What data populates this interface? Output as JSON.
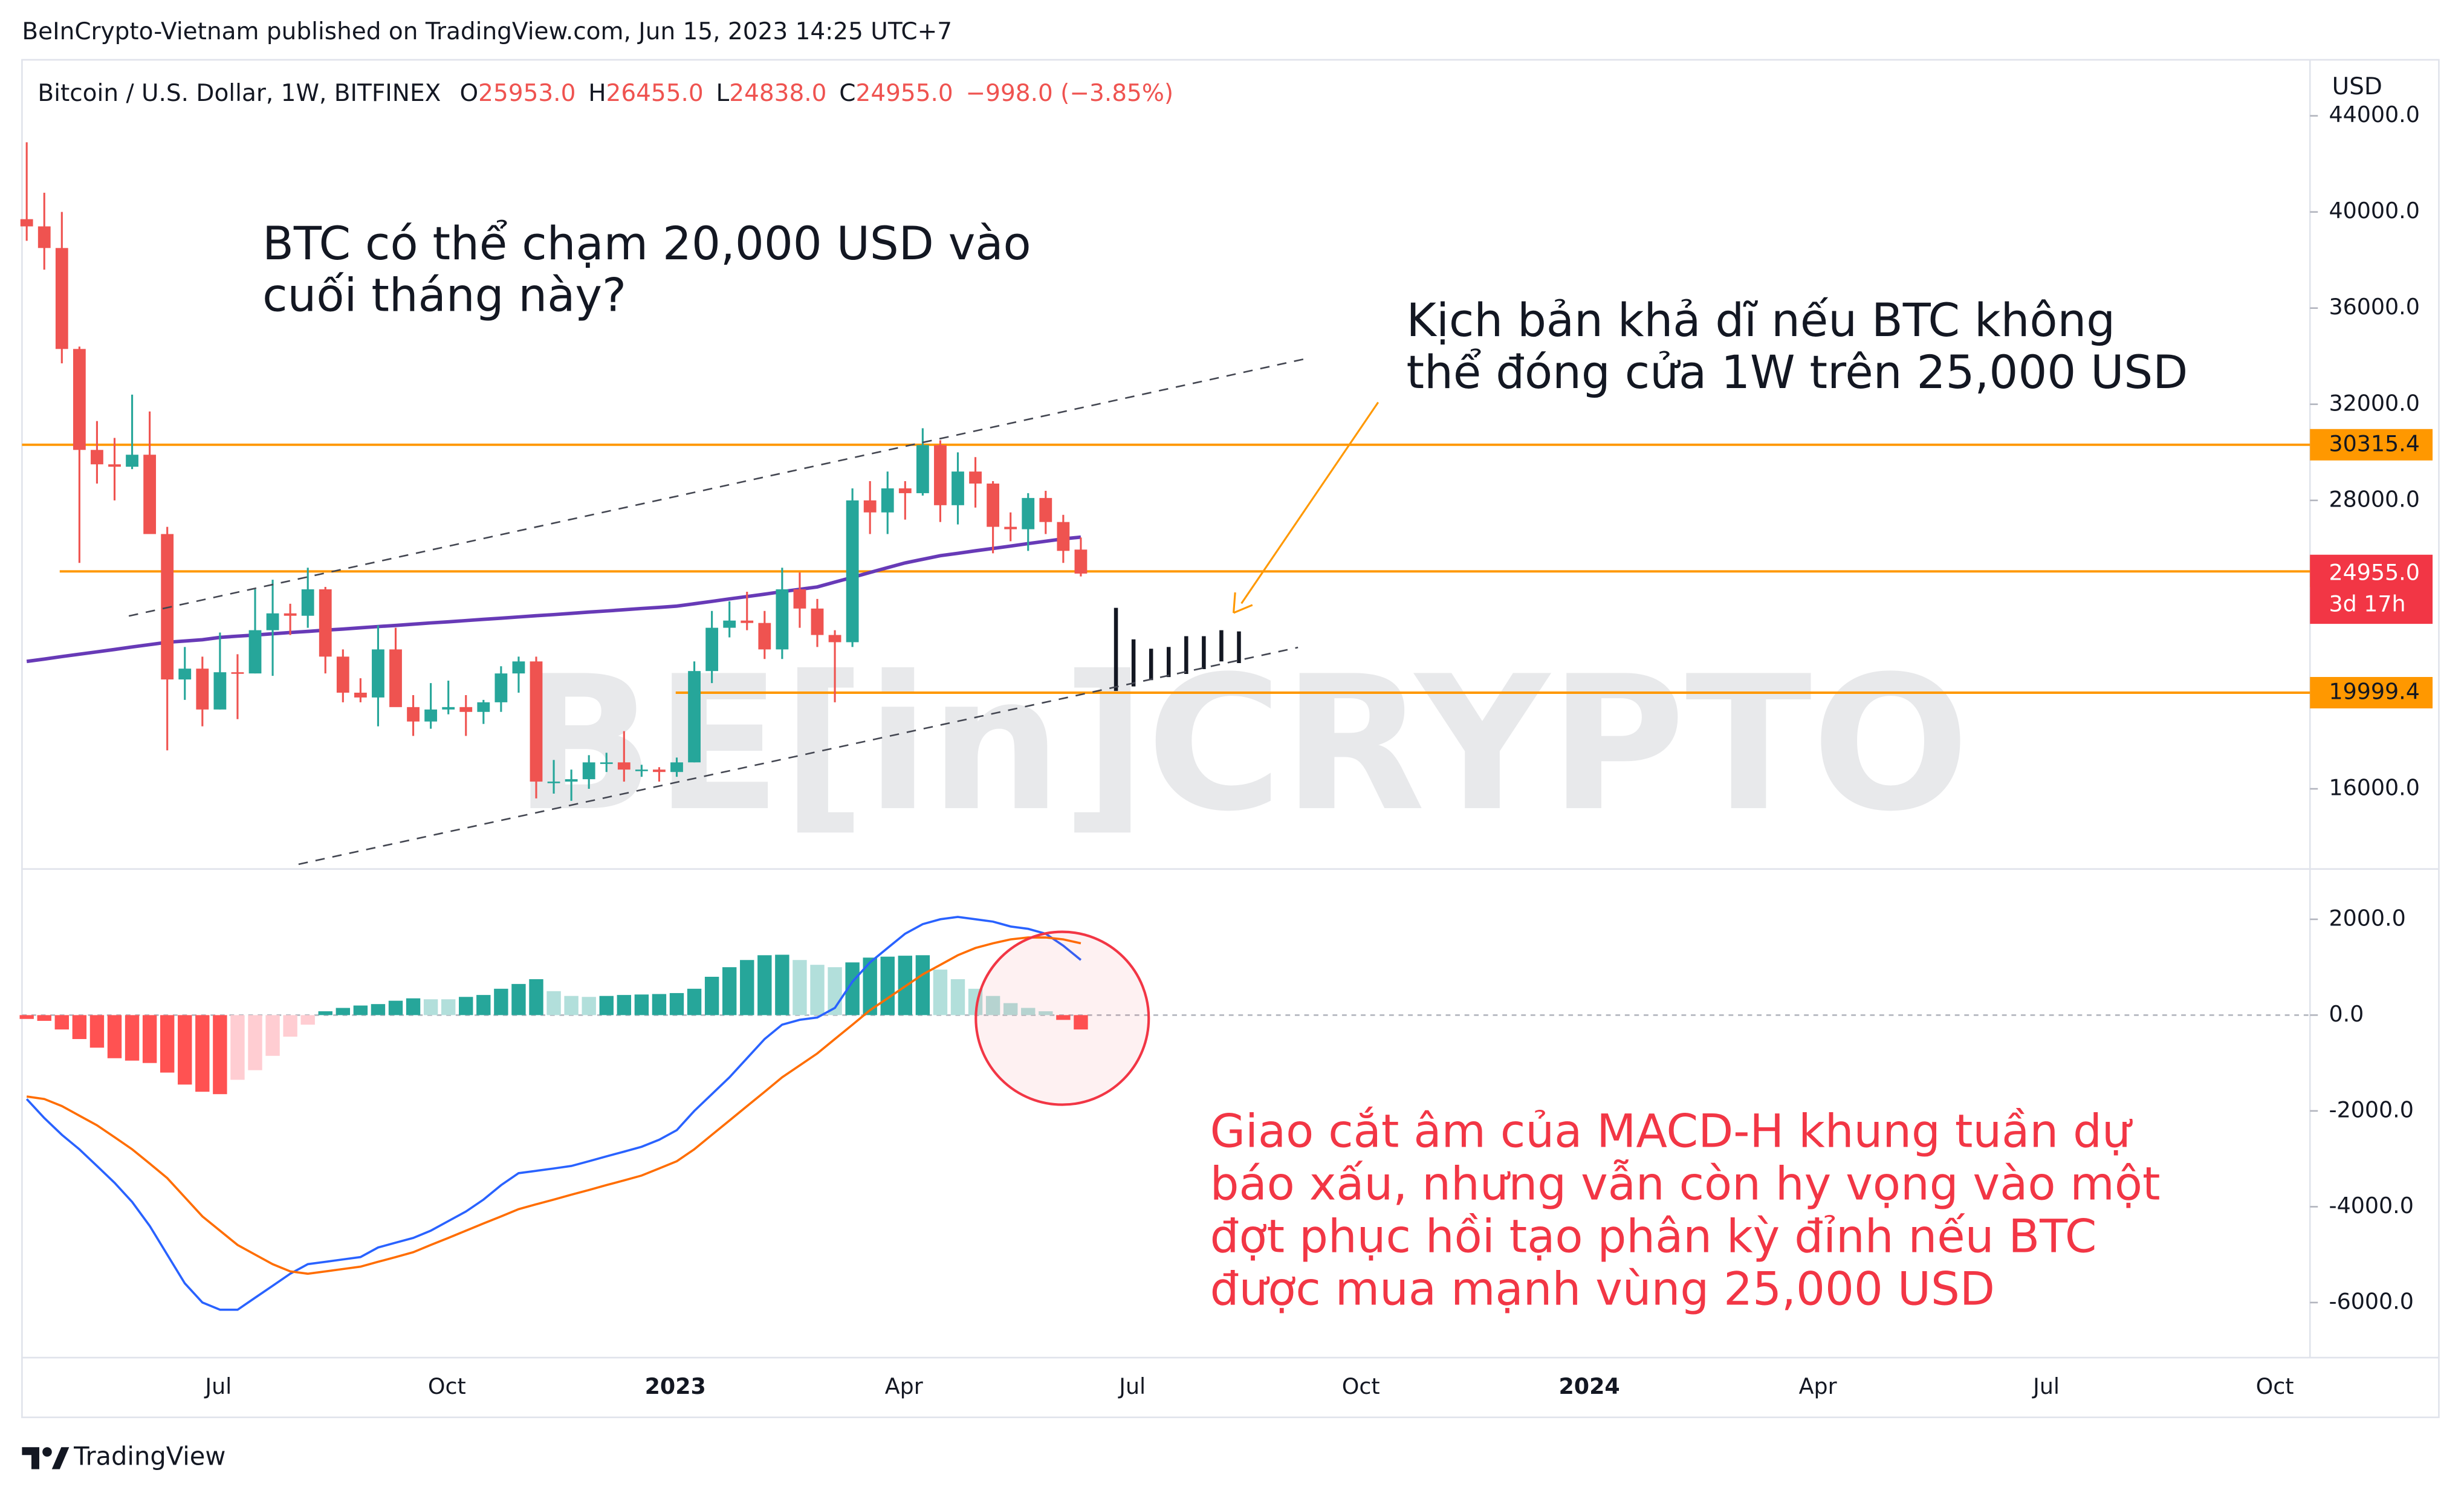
{
  "published": "BeInCrypto-Vietnam published on TradingView.com, Jun 15, 2023 14:25 UTC+7",
  "footer": "TradingView",
  "watermark": "BE[in]CRYPTO",
  "annotations": {
    "question": [
      "BTC có thể chạm 20,000 USD vào",
      "cuối tháng này?"
    ],
    "scenario": [
      "Kịch bản khả dĩ nếu BTC không",
      "thể đóng cửa 1W trên 25,000 USD"
    ],
    "macd_note": [
      "Giao cắt âm của MACD-H khung tuần dự",
      "báo xấu, nhưng vẫn còn hy vọng vào một",
      "đợt phục hồi tạo phân kỳ đỉnh nếu BTC",
      "được mua mạnh vùng 25,000 USD"
    ]
  },
  "time_axis": {
    "labels": [
      "Jul",
      "Oct",
      "2023",
      "Apr",
      "Jul",
      "Oct",
      "2024",
      "Apr",
      "Jul",
      "Oct"
    ],
    "bold": [
      "2023",
      "2024"
    ]
  },
  "chart_data": [
    {
      "type": "candlestick",
      "title": "Bitcoin / U.S. Dollar, 1W, BITFINEX",
      "ohlc_legend": [
        [
          "O",
          "25953.0"
        ],
        [
          "H",
          "26455.0"
        ],
        [
          "L",
          "24838.0"
        ],
        [
          "C",
          "24955.0"
        ]
      ],
      "change": "−998.0 (−3.85%)",
      "axis_unit": "USD",
      "up_color": "#26a69a",
      "down_color": "#ef5350",
      "ylim": [
        12730,
        46200
      ],
      "yticks": [
        {
          "value": 16000,
          "label": "16000.0"
        },
        {
          "value": 28000,
          "label": "28000.0"
        },
        {
          "value": 32000,
          "label": "32000.0"
        },
        {
          "value": 36000,
          "label": "36000.0"
        },
        {
          "value": 40000,
          "label": "40000.0"
        },
        {
          "value": 44000,
          "label": "44000.0"
        }
      ],
      "ohlc": [
        [
          39700,
          42900,
          38800,
          39400
        ],
        [
          39400,
          40800,
          37600,
          38500
        ],
        [
          38500,
          40000,
          33700,
          34300
        ],
        [
          34300,
          34400,
          25400,
          30100
        ],
        [
          30100,
          31300,
          28700,
          29500
        ],
        [
          29500,
          30600,
          28000,
          29400
        ],
        [
          29400,
          32400,
          29300,
          29900
        ],
        [
          29900,
          31700,
          26700,
          26600
        ],
        [
          26600,
          26900,
          17600,
          20550
        ],
        [
          20550,
          21900,
          19700,
          21000
        ],
        [
          21000,
          21500,
          18600,
          19300
        ],
        [
          19300,
          22500,
          19300,
          20850
        ],
        [
          20850,
          21600,
          18900,
          20800
        ],
        [
          20800,
          24300,
          20800,
          22600
        ],
        [
          22600,
          24700,
          20700,
          23300
        ],
        [
          23300,
          23700,
          22400,
          23200
        ],
        [
          23200,
          25200,
          22700,
          24300
        ],
        [
          24300,
          24400,
          20800,
          21500
        ],
        [
          21500,
          21800,
          19600,
          20000
        ],
        [
          20000,
          20600,
          19600,
          19800
        ],
        [
          19800,
          22800,
          18600,
          21800
        ],
        [
          21800,
          22700,
          19500,
          19400
        ],
        [
          19400,
          19900,
          18200,
          18800
        ],
        [
          18800,
          20400,
          18500,
          19300
        ],
        [
          19300,
          20500,
          19100,
          19400
        ],
        [
          19400,
          19900,
          18200,
          19200
        ],
        [
          19200,
          19700,
          18700,
          19600
        ],
        [
          19600,
          21100,
          19200,
          20800
        ],
        [
          20800,
          21500,
          20000,
          21300
        ],
        [
          21300,
          21500,
          15600,
          16300
        ],
        [
          16300,
          17200,
          15800,
          16300
        ],
        [
          16300,
          16800,
          15500,
          16400
        ],
        [
          16400,
          17400,
          16000,
          17100
        ],
        [
          17100,
          17500,
          16700,
          17100
        ],
        [
          17100,
          18400,
          16300,
          16800
        ],
        [
          16800,
          17000,
          16500,
          16800
        ],
        [
          16800,
          16900,
          16300,
          16700
        ],
        [
          16700,
          17300,
          16500,
          17100
        ],
        [
          17100,
          21300,
          17100,
          20900
        ],
        [
          20900,
          23400,
          20400,
          22700
        ],
        [
          22700,
          23800,
          22300,
          23000
        ],
        [
          23000,
          24200,
          22600,
          22900
        ],
        [
          22900,
          23400,
          21400,
          21800
        ],
        [
          21800,
          25200,
          21400,
          24300
        ],
        [
          24300,
          25000,
          22700,
          23500
        ],
        [
          23500,
          23900,
          21900,
          22400
        ],
        [
          22400,
          22600,
          19600,
          22100
        ],
        [
          22100,
          28500,
          21900,
          28000
        ],
        [
          28000,
          28800,
          26600,
          27500
        ],
        [
          27500,
          29200,
          26600,
          28500
        ],
        [
          28500,
          28800,
          27200,
          28300
        ],
        [
          28300,
          31000,
          28200,
          30300
        ],
        [
          30300,
          30500,
          27100,
          27800
        ],
        [
          27800,
          30000,
          27000,
          29200
        ],
        [
          29200,
          29800,
          27700,
          28700
        ],
        [
          28700,
          28800,
          25800,
          26900
        ],
        [
          26900,
          27500,
          26300,
          26800
        ],
        [
          26800,
          28300,
          25900,
          28100
        ],
        [
          28100,
          28400,
          26600,
          27100
        ],
        [
          27100,
          27400,
          25400,
          25900
        ],
        [
          25953,
          26455,
          24838,
          24955
        ]
      ],
      "ma": {
        "color": "#673ab7",
        "values": [
          21300,
          21400,
          21500,
          21600,
          21700,
          21800,
          21900,
          22000,
          22100,
          22150,
          22200,
          22300,
          22350,
          22400,
          22450,
          22500,
          22550,
          22600,
          22650,
          22700,
          22750,
          22800,
          22850,
          22900,
          22950,
          23000,
          23050,
          23100,
          23150,
          23200,
          23250,
          23300,
          23350,
          23400,
          23450,
          23500,
          23550,
          23600,
          23700,
          23800,
          23900,
          24000,
          24100,
          24200,
          24300,
          24400,
          24600,
          24800,
          25000,
          25200,
          25400,
          25550,
          25700,
          25800,
          25900,
          26000,
          26100,
          26200,
          26300,
          26400,
          26470
        ]
      },
      "projection": {
        "color": "#131722",
        "values": [
          [
            20070,
            23530
          ],
          [
            20260,
            22220
          ],
          [
            20520,
            21830
          ],
          [
            20650,
            21900
          ],
          [
            20780,
            22350
          ],
          [
            20980,
            22350
          ],
          [
            21300,
            22600
          ],
          [
            21230,
            22550
          ]
        ]
      },
      "levels": [
        30315.4,
        25045.1,
        19999.4
      ],
      "level_color": "#ff9800",
      "last_price": {
        "value": 24955,
        "label": "24955.0"
      },
      "countdown": "3d 17h",
      "last_color": "#f23645"
    },
    {
      "type": "macd",
      "ylim": [
        -7150,
        3050
      ],
      "yticks": [
        {
          "value": 2000,
          "label": "2000.0"
        },
        {
          "value": 0,
          "label": "0.0"
        },
        {
          "value": -2000,
          "label": "-2000.0"
        },
        {
          "value": -4000,
          "label": "-4000.0"
        },
        {
          "value": -6000,
          "label": "-6000.0"
        }
      ],
      "hist_colors": {
        "up_rising": "#26a69a",
        "up_falling": "#b2dfdb",
        "down_falling": "#ff5252",
        "down_rising": "#ffcdd2"
      },
      "histogram": [
        -80,
        -120,
        -300,
        -500,
        -680,
        -900,
        -950,
        -1000,
        -1200,
        -1450,
        -1600,
        -1650,
        -1350,
        -1150,
        -850,
        -450,
        -200,
        80,
        150,
        200,
        230,
        300,
        350,
        330,
        330,
        380,
        420,
        550,
        650,
        750,
        500,
        400,
        380,
        400,
        420,
        430,
        440,
        460,
        550,
        800,
        1000,
        1150,
        1250,
        1260,
        1150,
        1050,
        1000,
        1100,
        1200,
        1220,
        1240,
        1250,
        950,
        750,
        550,
        400,
        250,
        150,
        80,
        -100,
        -300
      ],
      "macd_line": {
        "color": "#2962ff",
        "values": [
          -1750,
          -2150,
          -2500,
          -2800,
          -3150,
          -3500,
          -3900,
          -4400,
          -5000,
          -5600,
          -6000,
          -6150,
          -6150,
          -5900,
          -5650,
          -5400,
          -5200,
          -5150,
          -5100,
          -5050,
          -4850,
          -4750,
          -4650,
          -4500,
          -4300,
          -4100,
          -3850,
          -3550,
          -3300,
          -3250,
          -3200,
          -3150,
          -3050,
          -2950,
          -2850,
          -2750,
          -2600,
          -2400,
          -2000,
          -1650,
          -1300,
          -900,
          -500,
          -200,
          -100,
          -50,
          150,
          700,
          1100,
          1400,
          1700,
          1900,
          2000,
          2050,
          2000,
          1950,
          1850,
          1800,
          1700,
          1450,
          1150
        ]
      },
      "signal_line": {
        "color": "#ff6d00",
        "values": [
          -1700,
          -1750,
          -1900,
          -2100,
          -2300,
          -2550,
          -2800,
          -3100,
          -3400,
          -3800,
          -4200,
          -4500,
          -4800,
          -5000,
          -5200,
          -5350,
          -5400,
          -5350,
          -5300,
          -5250,
          -5150,
          -5050,
          -4950,
          -4800,
          -4650,
          -4500,
          -4350,
          -4200,
          -4050,
          -3950,
          -3850,
          -3750,
          -3650,
          -3550,
          -3450,
          -3350,
          -3200,
          -3050,
          -2800,
          -2500,
          -2200,
          -1900,
          -1600,
          -1300,
          -1050,
          -800,
          -500,
          -200,
          100,
          350,
          600,
          850,
          1050,
          1250,
          1400,
          1500,
          1580,
          1620,
          1620,
          1580,
          1500
        ]
      }
    }
  ]
}
